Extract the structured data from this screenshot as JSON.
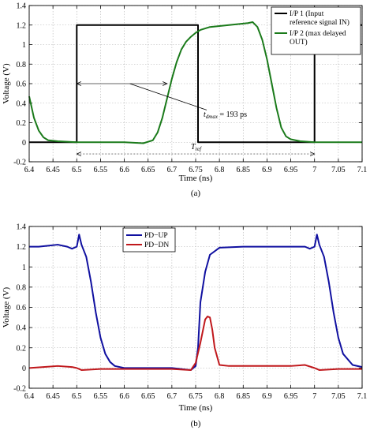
{
  "chart_data": [
    {
      "type": "line",
      "caption": "(a)",
      "xlabel": "Time (ns)",
      "ylabel": "Voltage (V)",
      "xlim": [
        6.4,
        7.1
      ],
      "ylim": [
        -0.2,
        1.4
      ],
      "xticks": [
        "6.4",
        "6.45",
        "6.5",
        "6.55",
        "6.6",
        "6.65",
        "6.7",
        "6.75",
        "6.8",
        "6.85",
        "6.9",
        "6.95",
        "7",
        "7.05",
        "7.1"
      ],
      "yticks": [
        "-0.2",
        "0",
        "0.2",
        "0.4",
        "0.6",
        "0.8",
        "1",
        "1.2",
        "1.4"
      ],
      "grid": true,
      "legend_position": "top-right",
      "series": [
        {
          "name": "I/P 1 (Input reference signal IN)",
          "legend_lines": [
            "I/P 1 (Input",
            "reference signal IN)"
          ],
          "color": "#000000",
          "x": [
            6.4,
            6.5,
            6.5,
            6.755,
            6.755,
            7.0,
            7.0,
            7.1
          ],
          "y": [
            0,
            0,
            1.2,
            1.2,
            0,
            0,
            1.2,
            1.2
          ]
        },
        {
          "name": "I/P 2 (max delayed OUT)",
          "legend_lines": [
            "I/P 2 (max delayed",
            "OUT)"
          ],
          "color": "#1a7a1a",
          "x": [
            6.4,
            6.41,
            6.42,
            6.43,
            6.44,
            6.46,
            6.5,
            6.55,
            6.6,
            6.64,
            6.66,
            6.67,
            6.68,
            6.69,
            6.7,
            6.71,
            6.72,
            6.73,
            6.74,
            6.75,
            6.76,
            6.78,
            6.8,
            6.82,
            6.84,
            6.86,
            6.87,
            6.88,
            6.89,
            6.9,
            6.91,
            6.92,
            6.93,
            6.94,
            6.95,
            6.97,
            7.0,
            7.02,
            7.05,
            7.1
          ],
          "y": [
            0.47,
            0.25,
            0.12,
            0.05,
            0.02,
            0.01,
            0.0,
            0.0,
            0.0,
            -0.01,
            0.02,
            0.1,
            0.25,
            0.45,
            0.65,
            0.82,
            0.95,
            1.03,
            1.08,
            1.12,
            1.15,
            1.18,
            1.19,
            1.2,
            1.21,
            1.22,
            1.23,
            1.18,
            1.05,
            0.85,
            0.6,
            0.35,
            0.15,
            0.06,
            0.03,
            0.01,
            0.0,
            0.0,
            0.0,
            0.0
          ]
        }
      ],
      "annotations": {
        "tdmax_label": "t",
        "tdmax_sub": "dmax",
        "tdmax_value": " = 193 ps",
        "tdmax_span": [
          6.5,
          6.69
        ],
        "tdmax_y": 0.6,
        "tref_label": "T",
        "tref_sub": "ref",
        "tref_span": [
          6.5,
          7.0
        ],
        "tref_y": -0.12
      }
    },
    {
      "type": "line",
      "caption": "(b)",
      "xlabel": "Time (ns)",
      "ylabel": "Voltage (V)",
      "xlim": [
        6.4,
        7.1
      ],
      "ylim": [
        -0.2,
        1.4
      ],
      "xticks": [
        "6.4",
        "6.45",
        "6.5",
        "6.55",
        "6.6",
        "6.65",
        "6.7",
        "6.75",
        "6.8",
        "6.85",
        "6.9",
        "6.95",
        "7",
        "7.05",
        "7.1"
      ],
      "yticks": [
        "-0.2",
        "0",
        "0.2",
        "0.4",
        "0.6",
        "0.8",
        "1",
        "1.2",
        "1.4"
      ],
      "grid": true,
      "legend_position": "top-center",
      "series": [
        {
          "name": "PD−UP",
          "legend_lines": [
            "PD−UP"
          ],
          "color": "#1010a0",
          "x": [
            6.4,
            6.42,
            6.44,
            6.46,
            6.48,
            6.49,
            6.5,
            6.505,
            6.51,
            6.52,
            6.53,
            6.54,
            6.55,
            6.56,
            6.57,
            6.58,
            6.6,
            6.65,
            6.7,
            6.74,
            6.75,
            6.755,
            6.76,
            6.77,
            6.78,
            6.8,
            6.85,
            6.9,
            6.95,
            6.98,
            6.99,
            7.0,
            7.005,
            7.01,
            7.02,
            7.03,
            7.04,
            7.05,
            7.06,
            7.08,
            7.1
          ],
          "y": [
            1.2,
            1.2,
            1.21,
            1.22,
            1.2,
            1.18,
            1.2,
            1.32,
            1.22,
            1.1,
            0.85,
            0.55,
            0.3,
            0.14,
            0.06,
            0.02,
            0.0,
            0.0,
            0.0,
            -0.02,
            0.02,
            0.2,
            0.65,
            0.95,
            1.12,
            1.19,
            1.2,
            1.2,
            1.2,
            1.2,
            1.18,
            1.2,
            1.32,
            1.22,
            1.1,
            0.85,
            0.55,
            0.3,
            0.14,
            0.03,
            0.01
          ]
        },
        {
          "name": "PD−DN",
          "legend_lines": [
            "PD−DN"
          ],
          "color": "#c0181c",
          "x": [
            6.4,
            6.43,
            6.46,
            6.49,
            6.5,
            6.51,
            6.55,
            6.6,
            6.65,
            6.7,
            6.74,
            6.75,
            6.76,
            6.77,
            6.775,
            6.78,
            6.785,
            6.79,
            6.8,
            6.82,
            6.85,
            6.9,
            6.95,
            6.98,
            7.0,
            7.01,
            7.05,
            7.1
          ],
          "y": [
            0.0,
            0.01,
            0.02,
            0.01,
            0.0,
            -0.02,
            -0.01,
            -0.01,
            -0.01,
            -0.01,
            -0.02,
            0.05,
            0.25,
            0.48,
            0.51,
            0.5,
            0.38,
            0.2,
            0.03,
            0.02,
            0.02,
            0.02,
            0.02,
            0.03,
            0.0,
            -0.02,
            -0.01,
            -0.01
          ]
        }
      ]
    }
  ]
}
